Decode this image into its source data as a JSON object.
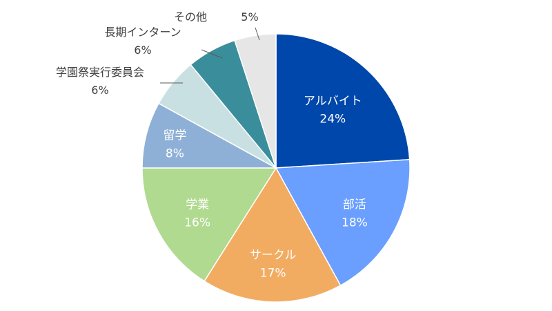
{
  "chart_data": {
    "type": "pie",
    "title": "",
    "slices": [
      {
        "label": "アルバイト",
        "value": 24,
        "value_label": "24%",
        "color": "#0047AB"
      },
      {
        "label": "部活",
        "value": 18,
        "value_label": "18%",
        "color": "#6A9FFF"
      },
      {
        "label": "サークル",
        "value": 17,
        "value_label": "17%",
        "color": "#F2AC62"
      },
      {
        "label": "学業",
        "value": 16,
        "value_label": "16%",
        "color": "#B0DA8F"
      },
      {
        "label": "留学",
        "value": 8,
        "value_label": "8%",
        "color": "#8FB0D6"
      },
      {
        "label": "学園祭実行委員会",
        "value": 6,
        "value_label": "6%",
        "color": "#C9E0E3"
      },
      {
        "label": "長期インターン",
        "value": 6,
        "value_label": "6%",
        "color": "#3A8E9C"
      },
      {
        "label": "その他",
        "value": 5,
        "value_label": "5%",
        "color": "#E6E6E6"
      }
    ],
    "start": "12 o'clock",
    "direction": "clockwise",
    "legend": "none",
    "labels": "on slices; small slices outside with leader lines"
  }
}
